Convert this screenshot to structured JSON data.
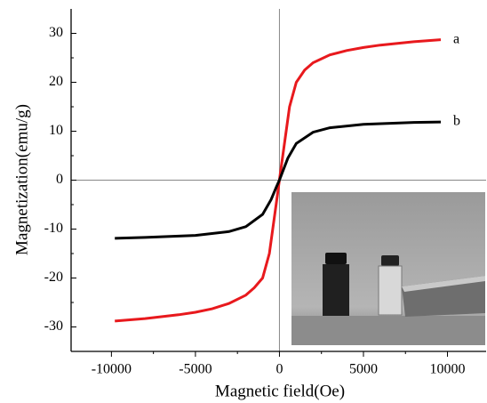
{
  "chart_data": {
    "type": "line",
    "xlabel": "Magnetic field(Oe)",
    "ylabel": "Magnetization(emu/g)",
    "xlim": [
      -12400,
      12300
    ],
    "ylim": [
      -35,
      35
    ],
    "xticks": [
      -10000,
      -5000,
      0,
      5000,
      10000
    ],
    "yticks": [
      -30,
      -20,
      -10,
      0,
      10,
      20,
      30
    ],
    "zero_lines": true,
    "series": [
      {
        "name": "a",
        "color": "#e8191d",
        "x": [
          -9800,
          -8000,
          -6000,
          -5000,
          -4000,
          -3000,
          -2000,
          -1500,
          -1000,
          -600,
          -400,
          -200,
          0,
          200,
          400,
          600,
          1000,
          1500,
          2000,
          3000,
          4000,
          5000,
          6000,
          8000,
          9600
        ],
        "values": [
          -28.8,
          -28.3,
          -27.5,
          -27.0,
          -26.3,
          -25.2,
          -23.5,
          -22.0,
          -20.0,
          -15.0,
          -10.0,
          -5.0,
          0,
          5.0,
          10.0,
          15.0,
          20.0,
          22.5,
          24.0,
          25.6,
          26.5,
          27.1,
          27.6,
          28.3,
          28.7
        ]
      },
      {
        "name": "b",
        "color": "#000000",
        "x": [
          -9800,
          -8000,
          -5000,
          -3000,
          -2000,
          -1000,
          -500,
          -200,
          0,
          200,
          500,
          1000,
          2000,
          3000,
          5000,
          8000,
          9600
        ],
        "values": [
          -11.9,
          -11.7,
          -11.3,
          -10.5,
          -9.5,
          -7.0,
          -4.0,
          -1.5,
          0,
          1.8,
          4.5,
          7.5,
          9.8,
          10.7,
          11.4,
          11.8,
          11.9
        ]
      }
    ]
  }
}
